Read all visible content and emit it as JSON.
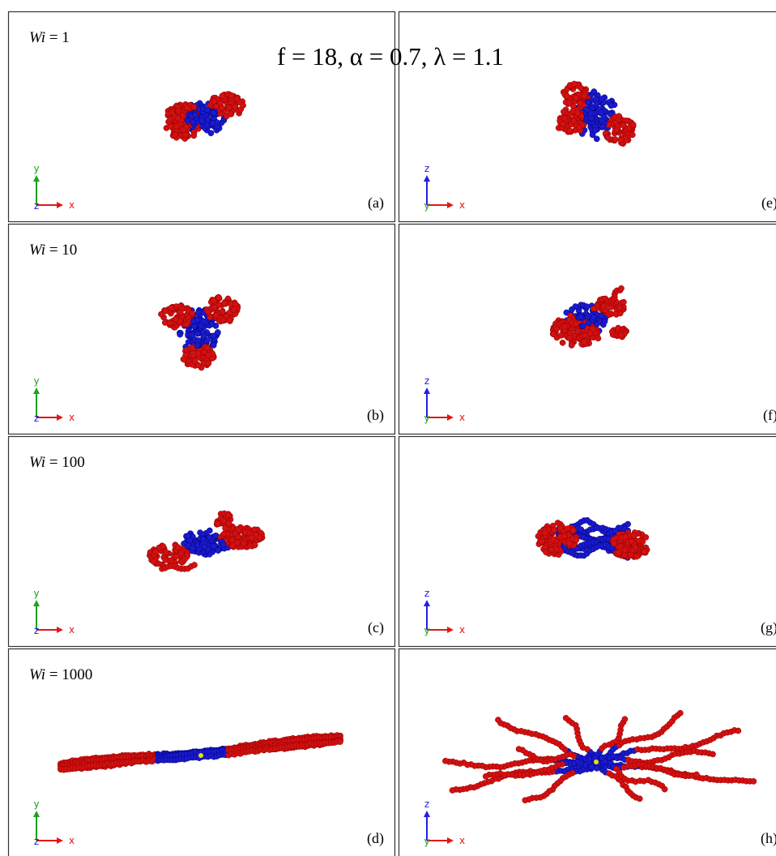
{
  "title": "f = 18, α = 0.7, λ = 1.1",
  "panels": [
    {
      "label_symbol": "Wi",
      "label_value": "= 1",
      "letter": "(a)",
      "axes": {
        "vertical": "y",
        "depth": "z",
        "horizontal": "x"
      }
    },
    {
      "letter": "(e)",
      "axes": {
        "vertical": "z",
        "depth": "y",
        "horizontal": "x"
      }
    },
    {
      "label_symbol": "Wi",
      "label_value": "= 10",
      "letter": "(b)",
      "axes": {
        "vertical": "y",
        "depth": "z",
        "horizontal": "x"
      }
    },
    {
      "letter": "(f)",
      "axes": {
        "vertical": "z",
        "depth": "y",
        "horizontal": "x"
      }
    },
    {
      "label_symbol": "Wi",
      "label_value": "= 100",
      "letter": "(c)",
      "axes": {
        "vertical": "y",
        "depth": "z",
        "horizontal": "x"
      }
    },
    {
      "letter": "(g)",
      "axes": {
        "vertical": "z",
        "depth": "y",
        "horizontal": "x"
      }
    },
    {
      "label_symbol": "Wi",
      "label_value": "= 1000",
      "letter": "(d)",
      "axes": {
        "vertical": "y",
        "depth": "z",
        "horizontal": "x"
      }
    },
    {
      "letter": "(h)",
      "axes": {
        "vertical": "z",
        "depth": "y",
        "horizontal": "x"
      }
    }
  ]
}
